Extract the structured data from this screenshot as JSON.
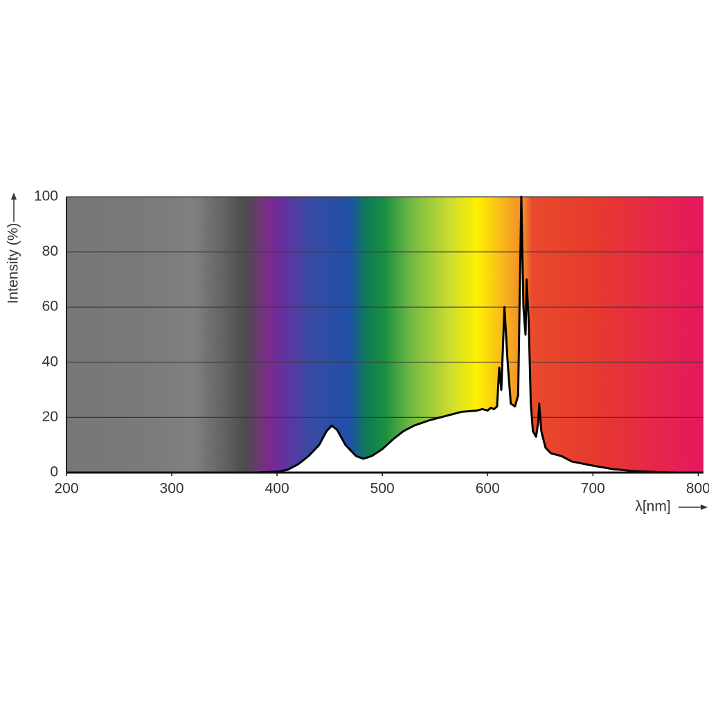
{
  "chart_data": {
    "type": "area",
    "y_label": "Intensity (%)",
    "x_label": "λ[nm]",
    "x": [
      200,
      380,
      400,
      410,
      420,
      430,
      440,
      447,
      452,
      457,
      465,
      475,
      482,
      490,
      500,
      510,
      520,
      530,
      545,
      560,
      575,
      590,
      595,
      600,
      603,
      606,
      609,
      611,
      613,
      616,
      619,
      622,
      626,
      629,
      632,
      634,
      636,
      637,
      639,
      641,
      643,
      646,
      648,
      649,
      651,
      655,
      660,
      670,
      680,
      700,
      720,
      740,
      760,
      780
    ],
    "values": [
      0,
      0,
      0.3,
      1,
      3,
      6,
      10,
      15,
      17,
      15.5,
      10,
      6,
      5,
      6,
      8.5,
      12,
      15,
      17,
      19,
      20.5,
      22,
      22.5,
      23,
      22.5,
      23.5,
      23,
      24,
      38,
      30,
      60,
      40,
      25,
      24,
      28,
      100,
      60,
      50,
      70,
      55,
      25,
      15,
      13,
      18,
      25,
      15,
      9,
      7,
      6,
      4,
      2.5,
      1.2,
      0.5,
      0.2,
      0
    ],
    "color": "#000000",
    "fill": "#ffffff",
    "xlim": [
      200,
      805
    ],
    "ylim": [
      0,
      100
    ],
    "xticks": [
      200,
      300,
      400,
      500,
      600,
      700,
      800
    ],
    "yticks": [
      0,
      20,
      40,
      60,
      80,
      100
    ],
    "grid": true
  }
}
